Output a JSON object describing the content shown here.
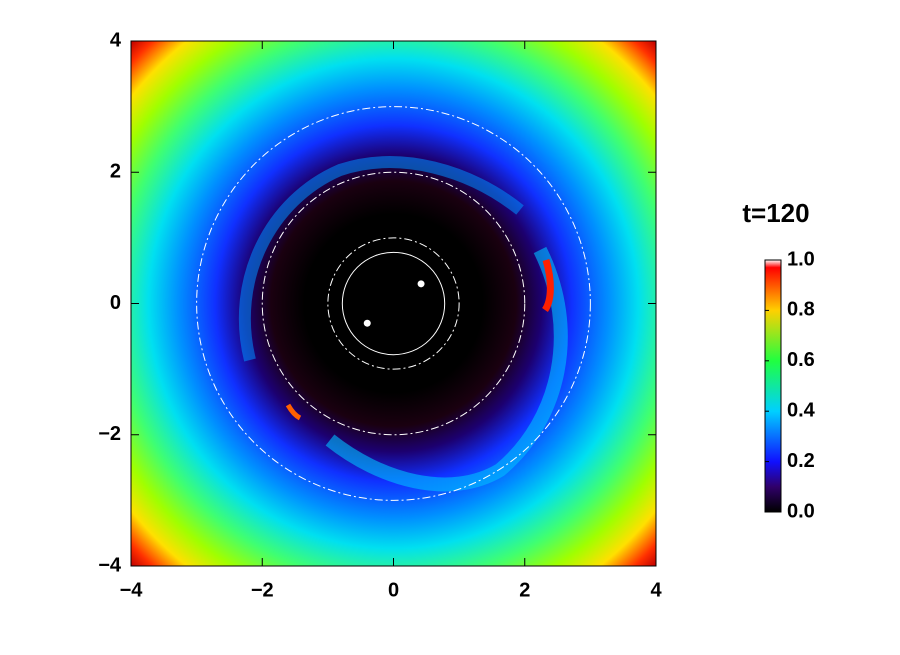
{
  "chart_data": {
    "type": "heatmap",
    "title": "t=120",
    "xlim": [
      -4,
      4
    ],
    "ylim": [
      -4,
      4
    ],
    "xticks": [
      {
        "value": -4,
        "label": "−4"
      },
      {
        "value": -2,
        "label": "−2"
      },
      0,
      2,
      4
    ],
    "yticks": [
      {
        "value": -4,
        "label": "−4"
      },
      {
        "value": -2,
        "label": "−2"
      },
      0,
      2,
      4
    ],
    "colorbar": {
      "lim": [
        0,
        1
      ],
      "ticks": [
        {
          "value": 0,
          "label": "0.0"
        },
        {
          "value": 0.2,
          "label": "0.2"
        },
        {
          "value": 0.4,
          "label": "0.4"
        },
        {
          "value": 0.6,
          "label": "0.6"
        },
        {
          "value": 0.8,
          "label": "0.8"
        },
        {
          "value": 1,
          "label": "1.0"
        }
      ]
    },
    "circles": [
      {
        "r": 0.78,
        "style": "solid"
      },
      {
        "r": 1,
        "style": "dashdot"
      },
      {
        "r": 2,
        "style": "dashdot"
      },
      {
        "r": 3,
        "style": "dashdot"
      }
    ],
    "points": {
      "x": [
        0.42,
        -0.4
      ],
      "y": [
        0.3,
        -0.3
      ]
    }
  }
}
